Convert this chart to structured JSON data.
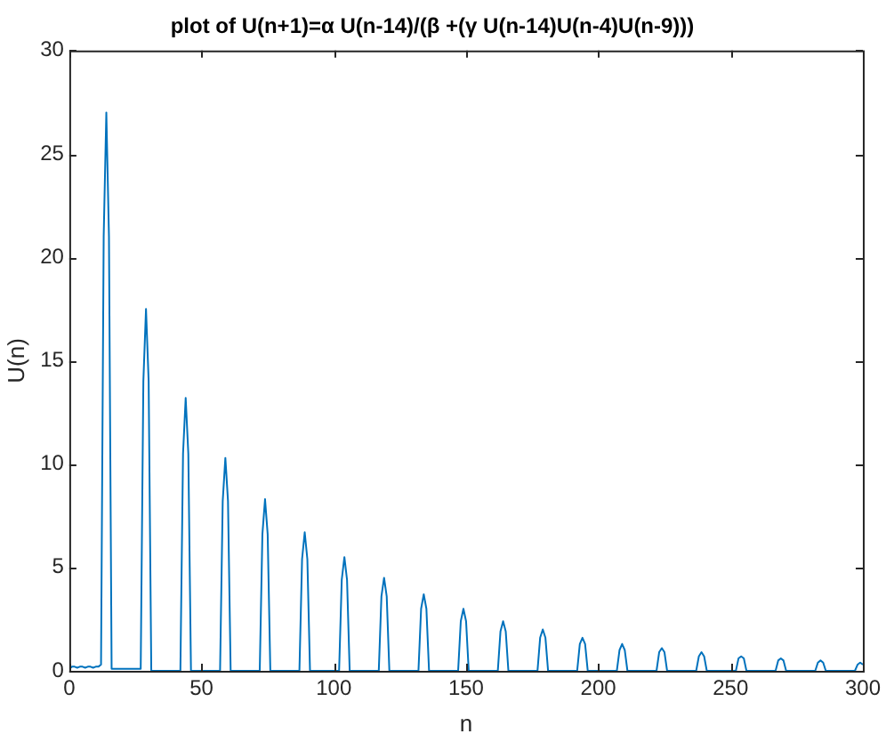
{
  "chart_data": {
    "type": "line",
    "title": "plot of U(n+1)=α U(n-14)/(β +(γ U(n-14)U(n-4)U(n-9)))",
    "xlabel": "n",
    "ylabel": "U(n)",
    "xlim": [
      0,
      300
    ],
    "xticks": [
      0,
      50,
      100,
      150,
      200,
      250,
      300
    ],
    "ylim": [
      0,
      30
    ],
    "yticks": [
      0,
      5,
      10,
      15,
      20,
      25,
      30
    ],
    "series": [
      {
        "color": "#0072bd",
        "x": [
          0,
          1,
          2,
          3,
          4,
          5,
          6,
          7,
          8,
          9,
          10,
          11,
          12,
          13,
          14,
          15,
          16,
          27,
          28,
          29,
          30,
          31,
          42,
          43,
          44,
          45,
          46,
          57,
          58,
          59,
          60,
          61,
          72,
          73,
          74,
          75,
          76,
          87,
          88,
          89,
          90,
          91,
          102,
          103,
          104,
          105,
          106,
          117,
          118,
          119,
          120,
          121,
          132,
          133,
          134,
          135,
          136,
          147,
          148,
          149,
          150,
          151,
          162,
          163,
          164,
          165,
          166,
          177,
          178,
          179,
          180,
          181,
          192,
          193,
          194,
          195,
          196,
          207,
          208,
          209,
          210,
          211,
          222,
          223,
          224,
          225,
          226,
          237,
          238,
          239,
          240,
          241,
          252,
          253,
          254,
          255,
          256,
          267,
          268,
          269,
          270,
          271,
          282,
          283,
          284,
          285,
          286,
          297,
          298,
          299,
          300
        ],
        "values": [
          0.1,
          0.2,
          0.2,
          0.15,
          0.2,
          0.2,
          0.15,
          0.2,
          0.2,
          0.15,
          0.2,
          0.2,
          0.3,
          21,
          27,
          21,
          0.1,
          0.1,
          14,
          17.5,
          14,
          0,
          0,
          10.5,
          13.2,
          10.5,
          0,
          0,
          8.2,
          10.3,
          8.2,
          0,
          0,
          6.6,
          8.3,
          6.6,
          0,
          0,
          5.4,
          6.7,
          5.4,
          0,
          0,
          4.4,
          5.5,
          4.4,
          0,
          0,
          3.6,
          4.5,
          3.6,
          0,
          0,
          3,
          3.7,
          3,
          0,
          0,
          2.4,
          3,
          2.4,
          0,
          0,
          1.9,
          2.4,
          1.9,
          0,
          0,
          1.6,
          2,
          1.6,
          0,
          0,
          1.3,
          1.6,
          1.3,
          0,
          0,
          1,
          1.3,
          1,
          0,
          0,
          0.9,
          1.1,
          0.9,
          0,
          0,
          0.7,
          0.9,
          0.7,
          0,
          0,
          0.6,
          0.7,
          0.6,
          0,
          0,
          0.5,
          0.6,
          0.5,
          0,
          0,
          0.4,
          0.5,
          0.4,
          0,
          0,
          0.3,
          0.4,
          0.3
        ]
      }
    ]
  }
}
